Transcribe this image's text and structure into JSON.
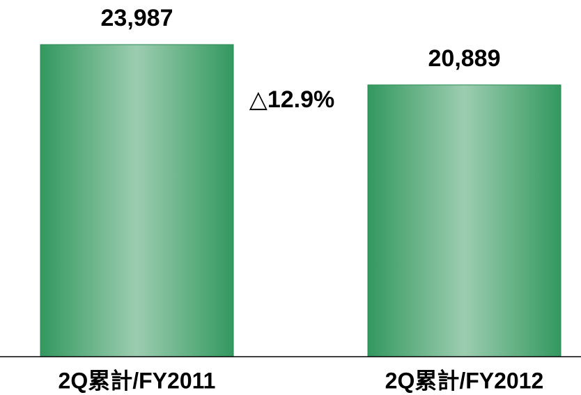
{
  "chart_data": {
    "type": "bar",
    "categories": [
      "2Q累計/FY2011",
      "2Q累計/FY2012"
    ],
    "values": [
      23987,
      20889
    ],
    "value_labels": [
      "23,987",
      "20,889"
    ],
    "color": "#33985f",
    "annotations": [
      "△12.9%"
    ]
  }
}
